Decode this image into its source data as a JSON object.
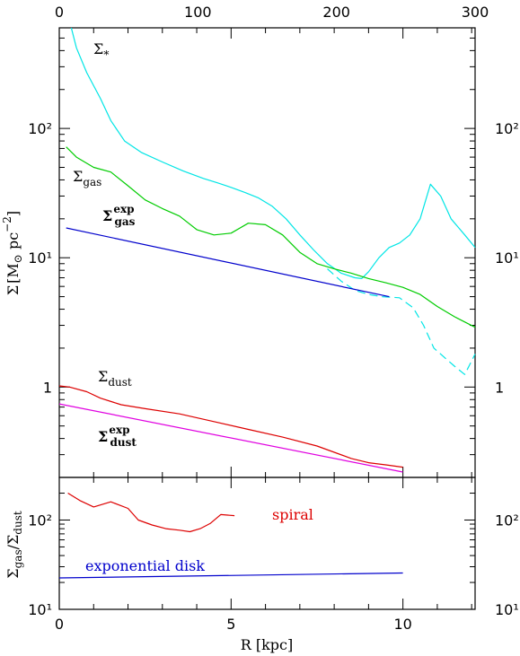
{
  "chart_data": [
    {
      "type": "line",
      "panel": "top",
      "title": "",
      "xlabel": "",
      "ylabel": "Σ [M⊙ pc⁻²]",
      "xscale": "linear",
      "yscale": "log",
      "xlim": [
        0,
        12.1
      ],
      "ylim": [
        0.2,
        600
      ],
      "x_ticks": [
        0,
        5,
        10
      ],
      "y_ticks": [
        1,
        10,
        100
      ],
      "y_tick_labels": [
        "1",
        "10¹",
        "10²"
      ],
      "top_axis": {
        "label": "",
        "lim": [
          0,
          300
        ],
        "ticks": [
          0,
          100,
          200,
          300
        ]
      },
      "grid": false,
      "series": [
        {
          "name": "Σ*",
          "color": "#00e5e5",
          "style": "solid",
          "x": [
            0.35,
            0.5,
            0.8,
            1.2,
            1.5,
            1.9,
            2.4,
            3.0,
            3.6,
            4.2,
            4.6,
            5.0,
            5.4,
            5.8,
            6.2,
            6.6,
            7.0,
            7.4,
            7.8,
            8.2,
            8.6,
            8.8,
            9.0,
            9.3,
            9.6,
            9.9,
            10.2,
            10.5,
            10.8,
            11.1,
            11.4,
            11.8,
            12.1
          ],
          "y": [
            600,
            420,
            270,
            170,
            115,
            80,
            65,
            55,
            47,
            41,
            38,
            35,
            32,
            29,
            25,
            20,
            15,
            11.5,
            9.0,
            7.6,
            7.0,
            6.9,
            7.8,
            10.0,
            12.0,
            13.0,
            15.0,
            20.0,
            37.0,
            30.0,
            20.0,
            15.0,
            12.0
          ]
        },
        {
          "name": "Σ* (dashed continuation)",
          "color": "#00e5e5",
          "style": "dashed",
          "x": [
            7.8,
            8.2,
            8.6,
            9.0,
            9.4,
            9.9,
            10.3,
            10.6,
            10.9,
            11.2,
            11.5,
            11.8,
            12.1
          ],
          "y": [
            8.2,
            6.6,
            5.6,
            5.2,
            5.0,
            4.9,
            4.1,
            3.0,
            2.0,
            1.7,
            1.45,
            1.25,
            1.8
          ]
        },
        {
          "name": "Σgas",
          "color": "#00cc00",
          "style": "solid",
          "x": [
            0.2,
            0.5,
            1.0,
            1.5,
            2.0,
            2.5,
            3.0,
            3.5,
            4.0,
            4.5,
            5.0,
            5.5,
            6.0,
            6.5,
            7.0,
            7.5,
            8.0,
            8.5,
            9.0,
            9.5,
            10.0,
            10.5,
            11.0,
            11.5,
            12.1
          ],
          "y": [
            72,
            60,
            50,
            46,
            36,
            28,
            24,
            21,
            16.5,
            15.0,
            15.5,
            18.5,
            18.0,
            15.0,
            11.0,
            9.0,
            8.2,
            7.6,
            6.9,
            6.4,
            5.9,
            5.2,
            4.2,
            3.5,
            2.9
          ]
        },
        {
          "name": "Σgas exp",
          "color": "#0000cc",
          "style": "solid",
          "x": [
            0.2,
            9.6
          ],
          "y": [
            17.0,
            5.0
          ]
        },
        {
          "name": "Σdust",
          "color": "#dd0000",
          "style": "solid",
          "x": [
            0.0,
            0.3,
            0.8,
            1.2,
            1.8,
            2.5,
            3.5,
            4.5,
            5.5,
            6.5,
            7.5,
            8.5,
            9.0,
            9.5,
            10.0
          ],
          "y": [
            1.02,
            1.0,
            0.92,
            0.82,
            0.73,
            0.68,
            0.62,
            0.54,
            0.47,
            0.41,
            0.35,
            0.28,
            0.26,
            0.25,
            0.24
          ]
        },
        {
          "name": "Σdust exp",
          "color": "#e000e0",
          "style": "solid",
          "x": [
            0.0,
            10.0
          ],
          "y": [
            0.74,
            0.22
          ]
        }
      ],
      "annotations": [
        {
          "base": "Σ",
          "sub": "*",
          "sup": "",
          "bold": false,
          "color": "#000000"
        },
        {
          "base": "Σ",
          "sub": "gas",
          "sup": "",
          "bold": false,
          "color": "#000000"
        },
        {
          "base": "Σ",
          "sub": "gas",
          "sup": "exp",
          "bold": true,
          "color": "#000000"
        },
        {
          "base": "Σ",
          "sub": "dust",
          "sup": "",
          "bold": false,
          "color": "#000000"
        },
        {
          "base": "Σ",
          "sub": "dust",
          "sup": "exp",
          "bold": true,
          "color": "#000000"
        }
      ]
    },
    {
      "type": "line",
      "panel": "bottom",
      "title": "",
      "xlabel": "R [kpc]",
      "ylabel": "Σgas/Σdust",
      "xscale": "linear",
      "yscale": "log",
      "xlim": [
        0,
        12.1
      ],
      "ylim": [
        10,
        300
      ],
      "x_ticks": [
        0,
        5,
        10
      ],
      "y_ticks": [
        10,
        100
      ],
      "y_tick_labels": [
        "10¹",
        "10²"
      ],
      "grid": false,
      "series": [
        {
          "name": "spiral",
          "color": "#dd0000",
          "style": "solid",
          "x": [
            0.25,
            0.6,
            1.0,
            1.5,
            2.0,
            2.3,
            2.7,
            3.1,
            3.5,
            3.8,
            4.1,
            4.4,
            4.7,
            5.1
          ],
          "y": [
            200,
            165,
            140,
            160,
            135,
            100,
            88,
            80,
            77,
            74,
            80,
            92,
            115,
            112
          ]
        },
        {
          "name": "exponential disk",
          "color": "#0000cc",
          "style": "solid",
          "x": [
            0.0,
            10.0
          ],
          "y": [
            22.5,
            25.5
          ]
        }
      ],
      "annotations": [
        {
          "text": "spiral",
          "color": "#dd0000"
        },
        {
          "text": "exponential disk",
          "color": "#0000cc"
        }
      ]
    }
  ],
  "ylabel_gas_dust": {
    "base1": "Σ",
    "sub1": "gas",
    "sep": "/",
    "base2": "Σ",
    "sub2": "dust"
  },
  "ylabel_sigma": {
    "base": "Σ",
    "bracket_open": "[M",
    "odot": "⊙",
    "unit": " pc",
    "exp": "−2",
    "bracket_close": "]"
  }
}
